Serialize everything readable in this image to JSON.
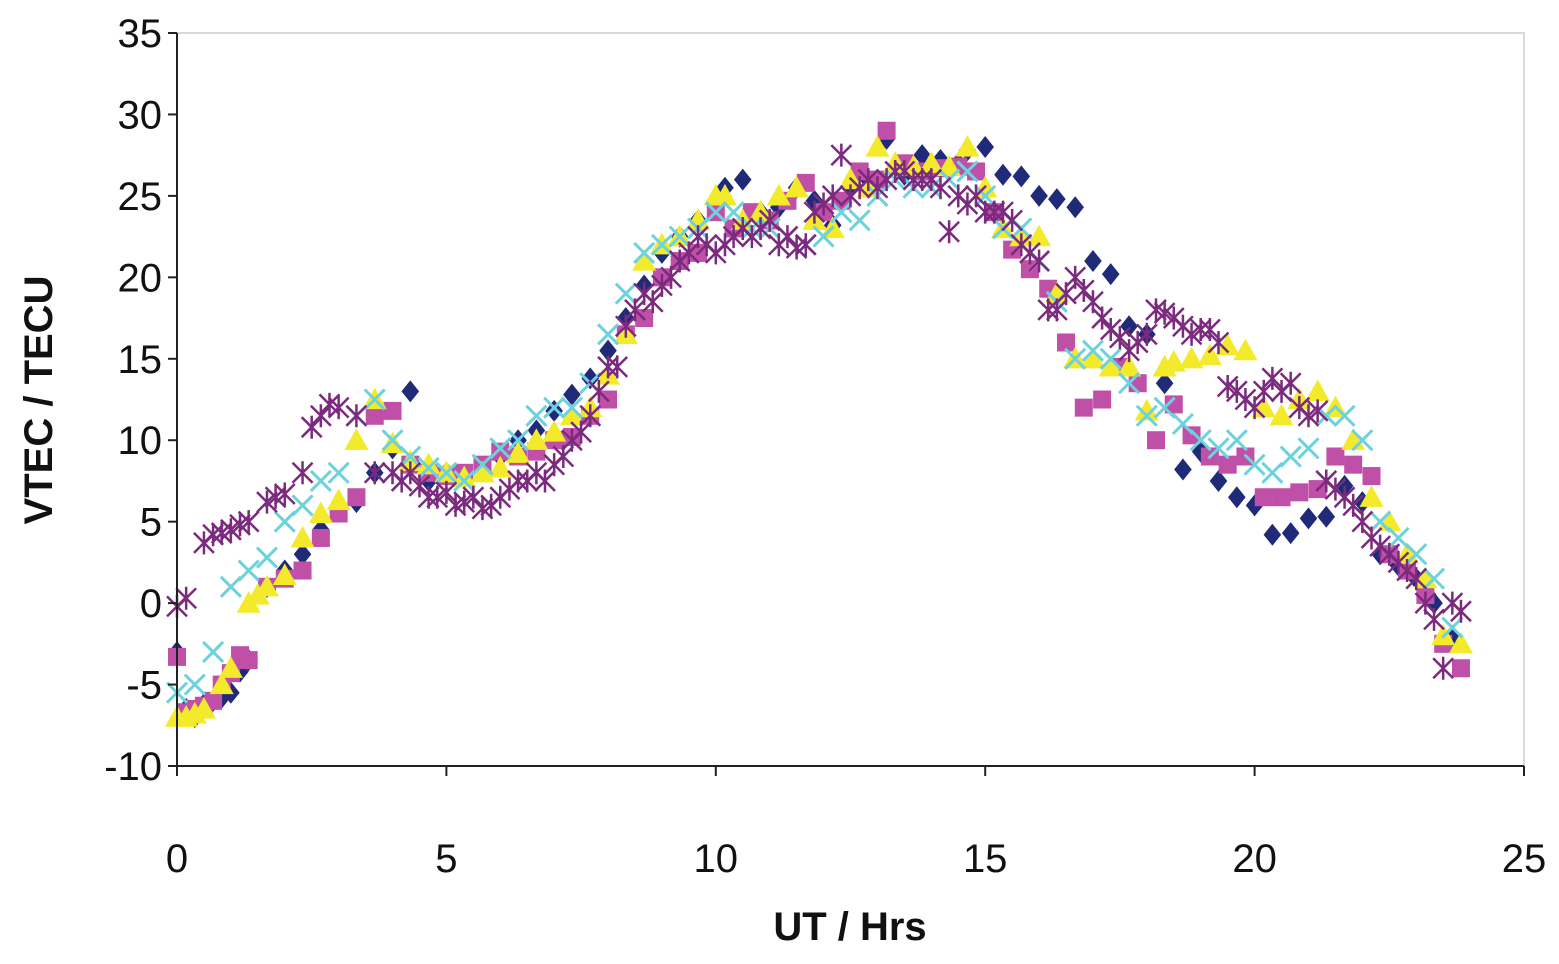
{
  "chart_data": {
    "type": "scatter",
    "title": "",
    "xlabel": "UT / Hrs",
    "ylabel": "VTEC / TECU",
    "xlim": [
      0,
      25
    ],
    "ylim": [
      -10,
      35
    ],
    "xticks": [
      0,
      5,
      10,
      15,
      20,
      25
    ],
    "yticks": [
      -10,
      -5,
      0,
      5,
      10,
      15,
      20,
      25,
      30,
      35
    ],
    "grid": false,
    "legend": "none",
    "series": [
      {
        "marker": "diamond",
        "color": "#1f2a78",
        "x": [
          0,
          0.17,
          0.33,
          0.5,
          0.67,
          0.83,
          1,
          1.17,
          1.33,
          1.67,
          2,
          2.33,
          2.67,
          3,
          3.33,
          3.67,
          4,
          4.33,
          4.67,
          5,
          5.33,
          5.67,
          6,
          6.33,
          6.67,
          7,
          7.33,
          7.67,
          8,
          8.33,
          8.67,
          9,
          9.33,
          9.67,
          10,
          10.17,
          10.5,
          10.83,
          11.17,
          11.5,
          11.83,
          12.17,
          12.5,
          12.83,
          13.17,
          13.5,
          13.83,
          14.17,
          14.5,
          14.67,
          15,
          15.33,
          15.67,
          16,
          16.33,
          16.67,
          17,
          17.33,
          17.67,
          18,
          18.33,
          18.67,
          19,
          19.33,
          19.67,
          20,
          20.33,
          20.67,
          21,
          21.33,
          21.67,
          22,
          22.33,
          22.67,
          23,
          23.33,
          23.67
        ],
        "y": [
          -3,
          -6.5,
          -7,
          -6.2,
          -6,
          -5.8,
          -5.5,
          -4.2,
          -3.5,
          1,
          2,
          3,
          4.5,
          5.8,
          6.2,
          8,
          9.5,
          13,
          7.5,
          8,
          7.7,
          8.2,
          9,
          10,
          10.6,
          11.8,
          12.8,
          13.8,
          15.5,
          17.5,
          19.5,
          21.5,
          22.5,
          23.5,
          24.5,
          25.5,
          26,
          24,
          24.3,
          25.5,
          24.7,
          23.2,
          25.5,
          26,
          28.5,
          26.3,
          27.5,
          27.2,
          27,
          27.8,
          28,
          26.3,
          26.2,
          25,
          24.8,
          24.3,
          21,
          20.2,
          17,
          16.5,
          13.5,
          8.2,
          9.3,
          7.5,
          6.5,
          6,
          4.2,
          4.3,
          5.2,
          5.3,
          7.2,
          6.2,
          3,
          2.3,
          1.5,
          0,
          -2
        ]
      },
      {
        "marker": "square",
        "color": "#c04fa8",
        "x": [
          0,
          0.17,
          0.33,
          0.5,
          0.67,
          0.83,
          1,
          1.17,
          1.33,
          1.67,
          2,
          2.33,
          2.67,
          3,
          3.33,
          3.67,
          4,
          4.33,
          4.67,
          5,
          5.33,
          5.67,
          6,
          6.33,
          6.67,
          7,
          7.33,
          7.67,
          8,
          8.33,
          8.67,
          9,
          9.33,
          9.67,
          10,
          10.33,
          10.67,
          11,
          11.33,
          11.67,
          12,
          12.33,
          12.67,
          13,
          13.17,
          13.5,
          13.83,
          14.17,
          14.5,
          14.83,
          15.17,
          15.5,
          15.83,
          16.17,
          16.5,
          16.83,
          17.17,
          17.5,
          17.83,
          18.17,
          18.5,
          18.83,
          19.17,
          19.5,
          19.83,
          20.17,
          20.5,
          20.83,
          21.17,
          21.5,
          21.83,
          22.17,
          22.5,
          22.83,
          23.17,
          23.5,
          23.83
        ],
        "y": [
          -3.3,
          -6.7,
          -6.5,
          -6.3,
          -6,
          -5,
          -4.3,
          -3.2,
          -3.5,
          1,
          1.5,
          2,
          4,
          5.5,
          6.5,
          11.5,
          11.8,
          8.5,
          8,
          7.8,
          8,
          8.5,
          9.3,
          9,
          9.3,
          10,
          10.2,
          11.5,
          12.5,
          16.5,
          17.5,
          20,
          21,
          21.5,
          24,
          23,
          24,
          23.5,
          24.7,
          25.8,
          24,
          24.7,
          26.5,
          26,
          29,
          27,
          26.5,
          26.7,
          26.8,
          26.5,
          24,
          21.7,
          20.5,
          19.3,
          16,
          12,
          12.5,
          14.5,
          13.5,
          10,
          12.2,
          10.3,
          9,
          8.5,
          9,
          6.5,
          6.5,
          6.8,
          7,
          9,
          8.5,
          7.8,
          3,
          2,
          0.5,
          -2.5,
          -4
        ]
      },
      {
        "marker": "triangle",
        "color": "#f2ea2a",
        "x": [
          0,
          0.17,
          0.33,
          0.5,
          0.83,
          1,
          1.33,
          1.5,
          1.67,
          2,
          2.33,
          2.67,
          3,
          3.33,
          3.67,
          4,
          4.33,
          4.67,
          5,
          5.33,
          5.67,
          6,
          6.33,
          6.67,
          7,
          7.33,
          7.67,
          8,
          8.33,
          8.67,
          9,
          9.33,
          9.67,
          10,
          10.17,
          10.5,
          10.83,
          11.17,
          11.5,
          11.83,
          12.17,
          12.5,
          12.83,
          13,
          13.33,
          13.67,
          14,
          14.33,
          14.67,
          15,
          15.33,
          15.67,
          16,
          16.33,
          16.67,
          17,
          17.33,
          17.67,
          18,
          18.33,
          18.5,
          18.83,
          19.17,
          19.5,
          19.83,
          20.17,
          20.5,
          20.83,
          21.17,
          21.5,
          21.83,
          22.17,
          22.5,
          22.83,
          23.17,
          23.5,
          23.83
        ],
        "y": [
          -7,
          -7,
          -6.8,
          -6.5,
          -5,
          -4,
          0,
          0.5,
          1,
          1.7,
          4,
          5.5,
          6.3,
          10,
          12.5,
          9.8,
          8.7,
          8.5,
          8,
          7.7,
          8,
          8.3,
          9.2,
          10,
          10.5,
          11.5,
          12,
          14,
          16.5,
          21,
          22,
          22.5,
          23.5,
          25,
          25,
          23.5,
          24,
          25,
          25.5,
          23.5,
          23,
          26,
          25.5,
          28,
          27,
          26.8,
          27,
          26.8,
          28,
          25.5,
          23,
          22.5,
          22.5,
          19,
          15,
          15,
          14.5,
          14.5,
          11.8,
          14.5,
          14.8,
          15,
          15.2,
          15.8,
          15.5,
          12,
          11.5,
          12.5,
          13,
          12,
          10,
          6.5,
          5,
          3,
          1.5,
          -2,
          -2.5
        ]
      },
      {
        "marker": "x",
        "color": "#6cd2dd",
        "x": [
          0,
          0.33,
          0.67,
          1,
          1.33,
          1.67,
          2,
          2.33,
          2.67,
          3,
          3.33,
          3.67,
          4,
          4.33,
          4.67,
          5,
          5.33,
          5.67,
          6,
          6.33,
          6.67,
          7,
          7.33,
          7.67,
          8,
          8.33,
          8.67,
          9,
          9.33,
          9.67,
          10,
          10.33,
          10.67,
          11,
          11.33,
          11.67,
          12,
          12.33,
          12.67,
          13,
          13.33,
          13.67,
          14,
          14.33,
          14.67,
          15,
          15.33,
          15.67,
          16,
          16.33,
          16.67,
          17,
          17.33,
          17.67,
          18,
          18.33,
          18.67,
          19,
          19.33,
          19.67,
          20,
          20.33,
          20.67,
          21,
          21.33,
          21.67,
          22,
          22.33,
          22.67,
          23,
          23.33,
          23.67
        ],
        "y": [
          -5.5,
          -5,
          -3,
          1,
          2,
          2.8,
          5,
          6,
          7.5,
          8,
          11.5,
          12.5,
          10,
          9,
          8.3,
          8,
          7.5,
          8.5,
          9.5,
          10,
          11.5,
          12,
          12,
          13.5,
          16.5,
          19,
          21.5,
          22,
          22.5,
          23,
          24,
          24,
          23,
          23,
          22.5,
          22,
          22.5,
          24,
          23.5,
          25,
          26,
          25.5,
          25.5,
          26,
          26.5,
          25,
          23,
          23,
          21,
          18.5,
          15,
          15.5,
          15,
          13.5,
          11.5,
          12,
          11,
          10,
          9.5,
          10,
          8.5,
          8,
          9,
          9.5,
          11.5,
          11.5,
          10,
          5,
          4,
          3,
          1.5,
          -1.5
        ]
      },
      {
        "marker": "asterisk",
        "color": "#7b2a7e",
        "x": [
          0,
          0.17,
          0.5,
          0.67,
          0.83,
          1,
          1.17,
          1.33,
          1.67,
          1.83,
          2,
          2.33,
          2.5,
          2.67,
          2.83,
          3,
          3.33,
          3.67,
          4,
          4.17,
          4.33,
          4.5,
          4.67,
          4.83,
          5,
          5.17,
          5.33,
          5.5,
          5.67,
          5.83,
          6,
          6.17,
          6.33,
          6.5,
          6.67,
          6.83,
          7,
          7.17,
          7.33,
          7.5,
          7.67,
          7.83,
          8,
          8.17,
          8.33,
          8.5,
          8.67,
          8.83,
          9,
          9.17,
          9.33,
          9.5,
          9.67,
          9.83,
          10,
          10.17,
          10.33,
          10.5,
          10.67,
          10.83,
          11,
          11.17,
          11.33,
          11.5,
          11.67,
          11.83,
          12,
          12.17,
          12.33,
          12.5,
          12.67,
          12.83,
          13,
          13.17,
          13.33,
          13.5,
          13.67,
          13.83,
          14,
          14.17,
          14.33,
          14.5,
          14.67,
          14.83,
          15,
          15.17,
          15.33,
          15.5,
          15.67,
          15.83,
          16,
          16.17,
          16.33,
          16.5,
          16.67,
          16.83,
          17,
          17.17,
          17.33,
          17.5,
          17.67,
          17.83,
          18,
          18.17,
          18.33,
          18.5,
          18.67,
          18.83,
          19,
          19.17,
          19.33,
          19.5,
          19.67,
          19.83,
          20,
          20.17,
          20.33,
          20.5,
          20.67,
          20.83,
          21,
          21.17,
          21.33,
          21.5,
          21.67,
          21.83,
          22,
          22.17,
          22.33,
          22.5,
          22.67,
          22.83,
          23,
          23.17,
          23.33,
          23.5,
          23.67,
          23.83
        ],
        "y": [
          -0.2,
          0.3,
          3.7,
          4.2,
          4.3,
          4.5,
          4.8,
          5,
          6.2,
          6.5,
          6.7,
          8,
          10.8,
          11.5,
          12.2,
          12,
          11.5,
          8,
          8,
          7.5,
          8,
          7.2,
          6.5,
          6.5,
          6.8,
          6,
          6.2,
          6.5,
          5.8,
          6,
          6.5,
          7,
          7.5,
          7.5,
          8,
          7.5,
          8.5,
          9,
          10,
          10.5,
          11.5,
          13,
          14.5,
          14.5,
          17,
          18,
          19,
          18.5,
          19.5,
          20,
          21,
          21.5,
          22.5,
          22,
          21.5,
          22,
          22.5,
          23,
          22.5,
          23,
          23.5,
          22,
          22.5,
          21.8,
          22,
          24,
          24.5,
          25,
          27.5,
          25,
          25.5,
          26,
          25.5,
          26,
          26.5,
          26.5,
          26,
          26,
          26,
          25.5,
          22.8,
          25,
          24.5,
          25,
          24,
          24,
          24,
          23.5,
          22,
          21.5,
          21,
          18,
          18,
          19,
          20,
          19.2,
          18.5,
          17.5,
          16.8,
          16.3,
          15.5,
          16,
          16.5,
          18,
          17.8,
          17.5,
          17,
          16.5,
          16.8,
          16.8,
          16,
          13.3,
          13,
          12.5,
          12,
          13,
          13.8,
          13,
          13.5,
          12,
          11.5,
          11.8,
          7.5,
          7,
          6.5,
          6,
          5,
          4,
          3.5,
          3,
          2.5,
          2,
          1.5,
          0,
          -1,
          -4,
          0,
          -0.5
        ]
      }
    ]
  }
}
